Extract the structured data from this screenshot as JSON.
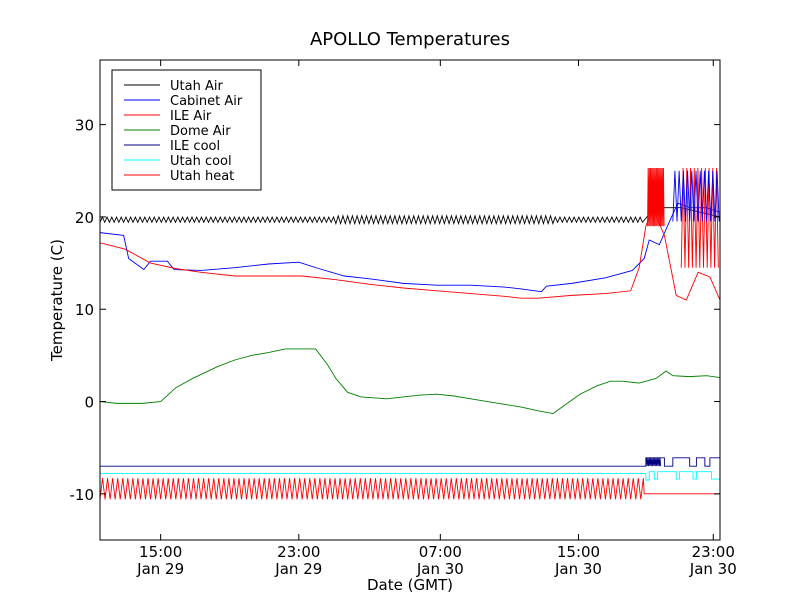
{
  "chart_data": {
    "type": "line",
    "title": "APOLLO Temperatures",
    "xlabel": "Date (GMT)",
    "ylabel": "Temperature (C)",
    "x_unit": "hours since Jan 29 10:30 GMT",
    "xlim": [
      0,
      36.8
    ],
    "ylim": [
      -15,
      37
    ],
    "yticks": [
      {
        "value": -10,
        "label": "-10"
      },
      {
        "value": 0,
        "label": "0"
      },
      {
        "value": 10,
        "label": "10"
      },
      {
        "value": 20,
        "label": "20"
      },
      {
        "value": 30,
        "label": "30"
      }
    ],
    "xticks": [
      {
        "value": 3.6,
        "line1": "15:00",
        "line2": "Jan 29"
      },
      {
        "value": 11.8,
        "line1": "23:00",
        "line2": "Jan 29"
      },
      {
        "value": 20.2,
        "line1": "07:00",
        "line2": "Jan 30"
      },
      {
        "value": 28.4,
        "line1": "15:00",
        "line2": "Jan 30"
      },
      {
        "value": 36.4,
        "line1": "23:00",
        "line2": "Jan 30"
      }
    ],
    "legend_position": "top-left",
    "series": [
      {
        "name": "Utah Air",
        "color": "#000000",
        "style": "osc",
        "points": [
          [
            0,
            19.7
          ],
          [
            32.3,
            19.7
          ],
          [
            32.6,
            20.3
          ],
          [
            33.5,
            21
          ],
          [
            34.5,
            21
          ],
          [
            36.8,
            20
          ]
        ],
        "osc_end": 32.3,
        "osc_amp": 0.35,
        "osc_period": 0.28
      },
      {
        "name": "Cabinet Air",
        "color": "#0000ff",
        "style": "line",
        "points": [
          [
            0,
            18.3
          ],
          [
            1.4,
            18
          ],
          [
            1.7,
            15.5
          ],
          [
            2.6,
            14.3
          ],
          [
            3.0,
            15.2
          ],
          [
            4.0,
            15.2
          ],
          [
            4.4,
            14.3
          ],
          [
            6,
            14.2
          ],
          [
            8,
            14.5
          ],
          [
            10,
            14.9
          ],
          [
            11.8,
            15.1
          ],
          [
            13,
            14.4
          ],
          [
            14.5,
            13.6
          ],
          [
            16,
            13.3
          ],
          [
            18,
            12.8
          ],
          [
            20,
            12.6
          ],
          [
            22,
            12.6
          ],
          [
            24,
            12.4
          ],
          [
            25,
            12.2
          ],
          [
            26.2,
            11.9
          ],
          [
            26.5,
            12.5
          ],
          [
            28,
            12.8
          ],
          [
            30,
            13.4
          ],
          [
            31.6,
            14.2
          ],
          [
            32.3,
            15.5
          ],
          [
            32.6,
            17.5
          ],
          [
            33.2,
            17
          ],
          [
            33.8,
            19.5
          ],
          [
            34.3,
            21.5
          ],
          [
            35,
            21
          ],
          [
            36,
            21
          ],
          [
            36.8,
            20.5
          ]
        ]
      },
      {
        "name": "ILE Air",
        "color": "#ff0000",
        "style": "line",
        "points": [
          [
            0,
            17.2
          ],
          [
            1.5,
            16.5
          ],
          [
            3,
            15
          ],
          [
            4.5,
            14.4
          ],
          [
            6,
            14
          ],
          [
            8,
            13.6
          ],
          [
            10,
            13.6
          ],
          [
            12,
            13.6
          ],
          [
            14,
            13.2
          ],
          [
            16,
            12.7
          ],
          [
            18,
            12.3
          ],
          [
            20,
            12
          ],
          [
            22,
            11.7
          ],
          [
            24,
            11.4
          ],
          [
            25,
            11.2
          ],
          [
            26,
            11.2
          ],
          [
            28,
            11.5
          ],
          [
            30,
            11.7
          ],
          [
            31.5,
            12
          ],
          [
            32,
            14.5
          ],
          [
            32.4,
            19
          ],
          [
            32.8,
            21
          ],
          [
            33.5,
            18
          ],
          [
            34.2,
            11.5
          ],
          [
            34.8,
            11
          ],
          [
            35.5,
            14
          ],
          [
            36.2,
            13.5
          ],
          [
            36.8,
            11
          ]
        ]
      },
      {
        "name": "Dome Air",
        "color": "#008000",
        "style": "line",
        "points": [
          [
            0,
            0
          ],
          [
            1,
            -0.2
          ],
          [
            2.5,
            -0.2
          ],
          [
            3.6,
            0
          ],
          [
            4.5,
            1.5
          ],
          [
            5.5,
            2.5
          ],
          [
            7,
            3.8
          ],
          [
            8,
            4.5
          ],
          [
            9,
            5
          ],
          [
            10,
            5.3
          ],
          [
            11,
            5.7
          ],
          [
            12,
            5.7
          ],
          [
            12.8,
            5.7
          ],
          [
            13.5,
            4
          ],
          [
            14,
            2.5
          ],
          [
            14.7,
            1
          ],
          [
            15.5,
            0.5
          ],
          [
            17,
            0.3
          ],
          [
            18,
            0.5
          ],
          [
            19,
            0.7
          ],
          [
            20,
            0.8
          ],
          [
            21,
            0.6
          ],
          [
            22,
            0.3
          ],
          [
            23,
            0
          ],
          [
            24,
            -0.3
          ],
          [
            25,
            -0.6
          ],
          [
            26,
            -1
          ],
          [
            26.9,
            -1.3
          ],
          [
            27.5,
            -0.5
          ],
          [
            28.5,
            0.8
          ],
          [
            29.5,
            1.7
          ],
          [
            30.3,
            2.2
          ],
          [
            31,
            2.2
          ],
          [
            32,
            2
          ],
          [
            33,
            2.5
          ],
          [
            33.6,
            3.3
          ],
          [
            34,
            2.8
          ],
          [
            35,
            2.7
          ],
          [
            36,
            2.8
          ],
          [
            36.8,
            2.6
          ]
        ]
      },
      {
        "name": "ILE cool",
        "color": "#000080",
        "style": "line",
        "points": [
          [
            0,
            -7
          ],
          [
            32.4,
            -7
          ],
          [
            32.4,
            -6.1
          ],
          [
            33.5,
            -6.1
          ],
          [
            33.5,
            -7
          ],
          [
            34,
            -7
          ],
          [
            34,
            -6.1
          ],
          [
            35,
            -6.1
          ],
          [
            35,
            -7
          ],
          [
            35.4,
            -7
          ],
          [
            35.4,
            -6.1
          ],
          [
            35.9,
            -6.1
          ],
          [
            35.9,
            -7
          ],
          [
            36.2,
            -7
          ],
          [
            36.2,
            -6.1
          ],
          [
            36.8,
            -6.1
          ]
        ]
      },
      {
        "name": "Utah cool",
        "color": "#00ffff",
        "style": "line",
        "points": [
          [
            0,
            -7.8
          ],
          [
            32.4,
            -7.8
          ],
          [
            32.4,
            -8.5
          ],
          [
            32.6,
            -8.5
          ],
          [
            32.6,
            -7.6
          ],
          [
            32.9,
            -7.6
          ],
          [
            32.9,
            -8.4
          ],
          [
            33.1,
            -8.4
          ],
          [
            33.1,
            -7.6
          ],
          [
            34.2,
            -7.6
          ],
          [
            34.2,
            -8.4
          ],
          [
            34.4,
            -8.4
          ],
          [
            34.4,
            -7.6
          ],
          [
            35.2,
            -7.6
          ],
          [
            35.2,
            -8.4
          ],
          [
            35.4,
            -8.4
          ],
          [
            35.4,
            -7.6
          ],
          [
            36.3,
            -7.6
          ],
          [
            36.3,
            -8.4
          ],
          [
            36.8,
            -8.4
          ]
        ]
      },
      {
        "name": "Utah heat",
        "color": "#ff0000",
        "style": "osc",
        "points": [
          [
            0,
            -10
          ],
          [
            36.8,
            -10
          ]
        ],
        "osc_end": 32.3,
        "osc_amp": 1.15,
        "osc_center": -9.45,
        "osc_period": 0.3
      }
    ],
    "bursts": [
      {
        "series": "ILE Air",
        "x_start": 32.5,
        "x_end": 33.5,
        "low": 19,
        "high": 25.3,
        "period": 0.07
      },
      {
        "series": "ILE Air",
        "x_start": 34.5,
        "x_end": 36.8,
        "low": 14.5,
        "high": 25.3,
        "period": 0.22
      },
      {
        "series": "Cabinet Air",
        "x_start": 34.0,
        "x_end": 36.8,
        "low": 19.5,
        "high": 25,
        "period": 0.25
      },
      {
        "series": "ILE cool",
        "x_start": 32.4,
        "x_end": 33.3,
        "low": -7,
        "high": -6.1,
        "period": 0.08
      }
    ]
  }
}
